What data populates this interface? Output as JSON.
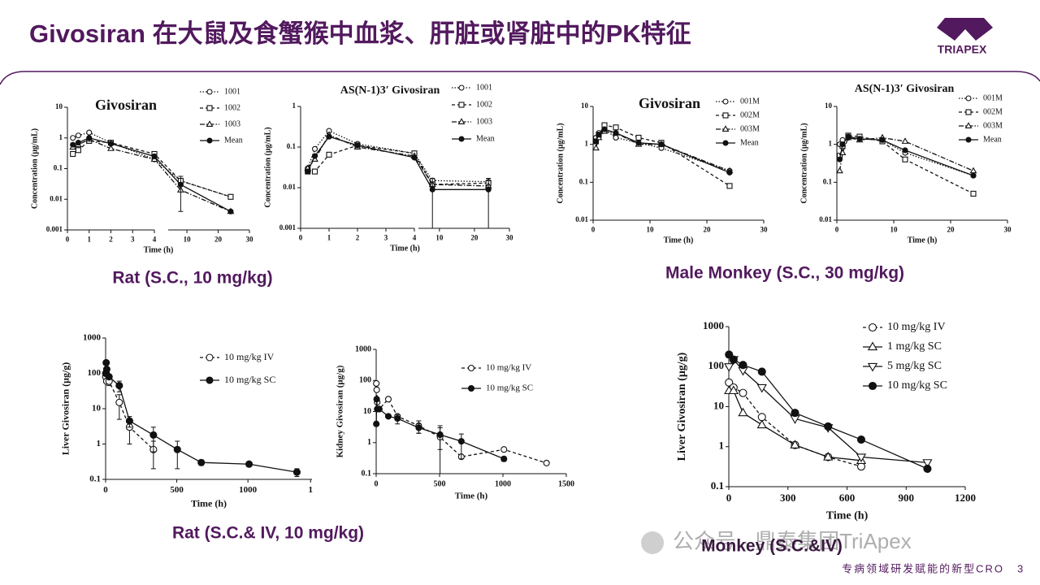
{
  "header": {
    "title": "Givosiran 在大鼠及食蟹猴中血浆、肝脏或肾脏中的PK特征",
    "logo": "TRIAPEX"
  },
  "captions": [
    "Rat (S.C., 10 mg/kg)",
    "Male Monkey (S.C., 30 mg/kg)",
    "Rat (S.C.& IV, 10 mg/kg)",
    "Monkey (S.C.&IV)"
  ],
  "footer": {
    "slogan": "专病领域研发赋能的新型CRO",
    "page": "3",
    "watermark": "公众号 · 鼎泰集团TriApex"
  },
  "chart_data": [
    {
      "type": "line",
      "title": "Givosiran",
      "xlabel": "Time (h)",
      "ylabel": "Concentration (μg/mL)",
      "log_y": true,
      "color": "#111111",
      "ylim": [
        0.001,
        10
      ],
      "yticks": [
        0.001,
        0.01,
        0.1,
        1,
        10
      ],
      "xaxis_segments": [
        {
          "xlim": [
            0,
            4
          ],
          "xticks": [
            0,
            1,
            2,
            3,
            4
          ]
        },
        {
          "xlim": [
            4,
            30
          ],
          "xticks": [
            10,
            20,
            30
          ]
        }
      ],
      "series": [
        {
          "name": "1001",
          "marker": "circle-open",
          "dash": "dotted",
          "x": [
            0.25,
            0.5,
            1,
            2,
            4,
            8,
            24
          ],
          "values": [
            1.0,
            1.2,
            1.5,
            0.7,
            0.2,
            0.04,
            0.012
          ]
        },
        {
          "name": "1002",
          "marker": "square-open",
          "dash": "dashed",
          "x": [
            0.25,
            0.5,
            1,
            2,
            4,
            8,
            24
          ],
          "values": [
            0.3,
            0.4,
            0.8,
            0.7,
            0.3,
            0.04,
            0.012
          ]
        },
        {
          "name": "1003",
          "marker": "triangle-open",
          "dash": "dashdot",
          "x": [
            0.25,
            0.5,
            1,
            2,
            4,
            8,
            24
          ],
          "values": [
            0.5,
            0.6,
            0.9,
            0.45,
            0.2,
            0.02,
            0.004
          ]
        },
        {
          "name": "Mean",
          "marker": "circle-filled",
          "dash": "solid",
          "x": [
            0.25,
            0.5,
            1,
            2,
            4,
            8,
            24
          ],
          "values": [
            0.6,
            0.7,
            1.0,
            0.65,
            0.25,
            0.03,
            0.004
          ],
          "errors": [
            null,
            null,
            null,
            null,
            null,
            0.026,
            null
          ]
        }
      ]
    },
    {
      "type": "line",
      "title": "AS(N-1)3′ Givosiran",
      "xlabel": "Time (h)",
      "ylabel": "Concentration (μg/mL)",
      "log_y": true,
      "color": "#111111",
      "ylim": [
        0.001,
        1
      ],
      "yticks": [
        0.001,
        0.01,
        0.1,
        1
      ],
      "xaxis_segments": [
        {
          "xlim": [
            0,
            4
          ],
          "xticks": [
            0,
            1,
            2,
            3,
            4
          ]
        },
        {
          "xlim": [
            4,
            30
          ],
          "xticks": [
            10,
            20,
            30
          ]
        }
      ],
      "series": [
        {
          "name": "1001",
          "marker": "circle-open",
          "dash": "dotted",
          "x": [
            0.25,
            0.5,
            1,
            2,
            4,
            8,
            24
          ],
          "values": [
            0.03,
            0.09,
            0.25,
            0.12,
            0.07,
            0.015,
            0.014
          ]
        },
        {
          "name": "1002",
          "marker": "square-open",
          "dash": "dashed",
          "x": [
            0.25,
            0.5,
            1,
            2,
            4,
            8,
            24
          ],
          "values": [
            0.025,
            0.025,
            0.065,
            0.11,
            0.07,
            0.012,
            0.013
          ]
        },
        {
          "name": "1003",
          "marker": "triangle-open",
          "dash": "dashdot",
          "x": [
            0.25,
            0.5,
            1,
            2,
            4,
            8,
            24
          ],
          "values": [
            0.03,
            0.05,
            0.2,
            0.1,
            0.06,
            0.012,
            0.011
          ]
        },
        {
          "name": "Mean",
          "marker": "circle-filled",
          "dash": "solid",
          "x": [
            0.25,
            0.5,
            1,
            2,
            4,
            8,
            24
          ],
          "values": [
            0.025,
            0.06,
            0.18,
            0.11,
            0.055,
            0.009,
            0.009
          ],
          "errors": [
            null,
            null,
            null,
            null,
            null,
            0.008,
            0.008
          ]
        }
      ]
    },
    {
      "type": "line",
      "title": "Givosiran",
      "xlabel": "Time (h)",
      "ylabel": "Concentration (μg/mL)",
      "log_y": true,
      "color": "#111111",
      "ylim": [
        0.01,
        10
      ],
      "yticks": [
        0.01,
        0.1,
        1,
        10
      ],
      "xlim": [
        0,
        30
      ],
      "xticks": [
        0,
        10,
        20,
        30
      ],
      "series": [
        {
          "name": "001M",
          "marker": "circle-open",
          "dash": "dotted",
          "x": [
            0.5,
            1,
            2,
            4,
            8,
            12,
            24
          ],
          "values": [
            1.5,
            2,
            2.5,
            1.5,
            1.1,
            0.8,
            0.2
          ]
        },
        {
          "name": "002M",
          "marker": "square-open",
          "dash": "dashed",
          "x": [
            0.5,
            1,
            2,
            4,
            8,
            12,
            24
          ],
          "values": [
            1.2,
            1.8,
            3.2,
            2.8,
            1.5,
            1.1,
            0.08
          ]
        },
        {
          "name": "003M",
          "marker": "triangle-open",
          "dash": "dashdot",
          "x": [
            0.5,
            1,
            2,
            4,
            8,
            12,
            24
          ],
          "values": [
            0.8,
            1.5,
            2.2,
            2,
            1.0,
            1.0,
            0.2
          ]
        },
        {
          "name": "Mean",
          "marker": "circle-filled",
          "dash": "solid",
          "x": [
            0.5,
            1,
            2,
            4,
            8,
            12,
            24
          ],
          "values": [
            1.2,
            1.8,
            2.5,
            2,
            1.1,
            1.0,
            0.18
          ]
        }
      ]
    },
    {
      "type": "line",
      "title": "AS(N-1)3′ Givosiran",
      "xlabel": "Time (h)",
      "ylabel": "Concentration (μg/mL)",
      "log_y": true,
      "color": "#111111",
      "ylim": [
        0.01,
        10
      ],
      "yticks": [
        0.01,
        0.1,
        1,
        10
      ],
      "xlim": [
        0,
        30
      ],
      "xticks": [
        0,
        10,
        20,
        30
      ],
      "series": [
        {
          "name": "001M",
          "marker": "circle-open",
          "dash": "dotted",
          "x": [
            0.5,
            1,
            2,
            4,
            8,
            12,
            24
          ],
          "values": [
            1.0,
            1.3,
            1.5,
            1.4,
            1.3,
            0.6,
            0.15
          ]
        },
        {
          "name": "002M",
          "marker": "square-open",
          "dash": "dashed",
          "x": [
            0.5,
            1,
            2,
            4,
            8,
            12,
            24
          ],
          "values": [
            0.5,
            0.9,
            1.7,
            1.6,
            1.2,
            0.4,
            0.05
          ]
        },
        {
          "name": "003M",
          "marker": "triangle-open",
          "dash": "dashdot",
          "x": [
            0.5,
            1,
            2,
            4,
            8,
            12,
            24
          ],
          "values": [
            0.2,
            0.6,
            1.5,
            1.3,
            1.5,
            1.2,
            0.2
          ]
        },
        {
          "name": "Mean",
          "marker": "circle-filled",
          "dash": "solid",
          "x": [
            0.5,
            1,
            2,
            4,
            8,
            12,
            24
          ],
          "values": [
            0.4,
            1.0,
            1.6,
            1.4,
            1.3,
            0.7,
            0.15
          ]
        }
      ]
    },
    {
      "type": "line",
      "xlabel": "Time (h)",
      "ylabel": "Liver Givosiran (μg/g)",
      "log_y": true,
      "color": "#111111",
      "ylim": [
        0.1,
        1000
      ],
      "yticks": [
        0.1,
        1,
        10,
        100,
        1000
      ],
      "xlim": [
        0,
        1450
      ],
      "xticks": [
        0,
        500,
        1000,
        {
          "value": 1440,
          "label": "1"
        }
      ],
      "series": [
        {
          "name": "10 mg/kg IV",
          "marker": "circle-open",
          "dash": "dashed",
          "x": [
            1,
            4,
            8,
            24,
            96,
            168,
            336
          ],
          "values": [
            80,
            100,
            60,
            60,
            15,
            3,
            0.7
          ],
          "errors": [
            null,
            null,
            null,
            15,
            10,
            2,
            0.5
          ]
        },
        {
          "name": "10 mg/kg SC",
          "marker": "circle-filled",
          "dash": "solid",
          "x": [
            1,
            4,
            8,
            24,
            96,
            168,
            336,
            504,
            672,
            1008,
            1344
          ],
          "values": [
            100,
            200,
            130,
            80,
            45,
            4.5,
            1.8,
            0.7,
            0.3,
            0.27,
            0.16
          ],
          "errors": [
            null,
            null,
            null,
            null,
            15,
            1.5,
            1.2,
            0.5,
            0.05,
            null,
            0.04
          ]
        }
      ]
    },
    {
      "type": "line",
      "xlabel": "Time (h)",
      "ylabel": "Kidney Givosiran (μg/g)",
      "log_y": true,
      "color": "#111111",
      "ylim": [
        0.1,
        1000
      ],
      "yticks": [
        0.1,
        1,
        10,
        100,
        1000
      ],
      "xlim": [
        0,
        1500
      ],
      "xticks": [
        0,
        500,
        1000,
        1500
      ],
      "series": [
        {
          "name": "10 mg/kg IV",
          "marker": "circle-open",
          "dash": "dashed",
          "x": [
            1,
            4,
            8,
            24,
            96,
            168,
            336,
            504,
            672,
            1008,
            1344
          ],
          "values": [
            80,
            50,
            20,
            12,
            25,
            7,
            3.5,
            1.5,
            0.35,
            0.6,
            0.22
          ],
          "errors": [
            null,
            null,
            null,
            null,
            null,
            null,
            1.5,
            2,
            null,
            null,
            null
          ]
        },
        {
          "name": "10 mg/kg SC",
          "marker": "circle-filled",
          "dash": "solid",
          "x": [
            1,
            4,
            8,
            24,
            96,
            168,
            336,
            504,
            672,
            1008
          ],
          "values": [
            4,
            25,
            12,
            12,
            7,
            6,
            3,
            1.8,
            1.1,
            0.3
          ],
          "errors": [
            null,
            null,
            null,
            null,
            null,
            2,
            1,
            1.2,
            0.8,
            0.05
          ]
        }
      ]
    },
    {
      "type": "line",
      "xlabel": "Time (h)",
      "ylabel": "Liver Givosiran (μg/g)",
      "log_y": true,
      "color": "#111111",
      "ylim": [
        0.1,
        1000
      ],
      "yticks": [
        0.1,
        1,
        10,
        100,
        1000
      ],
      "xlim": [
        0,
        1200
      ],
      "xticks": [
        0,
        300,
        600,
        900,
        1200
      ],
      "series": [
        {
          "name": "10 mg/kg IV",
          "marker": "circle-open",
          "dash": "dashed",
          "x": [
            1,
            24,
            72,
            168,
            336,
            504,
            672
          ],
          "values": [
            40,
            30,
            22,
            5.5,
            1.1,
            0.55,
            0.32
          ]
        },
        {
          "name": "1 mg/kg SC",
          "marker": "triangle-open",
          "dash": "solid",
          "x": [
            1,
            24,
            72,
            168,
            336,
            504,
            672
          ],
          "values": [
            25,
            25,
            7,
            3.5,
            1.1,
            0.55,
            0.45
          ]
        },
        {
          "name": "5 mg/kg SC",
          "marker": "triangle-down-open",
          "dash": "solid",
          "x": [
            1,
            24,
            72,
            168,
            336,
            504,
            672,
            1008
          ],
          "values": [
            100,
            150,
            80,
            30,
            5,
            3,
            0.55,
            0.4
          ]
        },
        {
          "name": "10 mg/kg SC",
          "marker": "circle-filled",
          "dash": "solid",
          "x": [
            1,
            24,
            72,
            168,
            336,
            504,
            672,
            1008
          ],
          "values": [
            200,
            150,
            110,
            75,
            7,
            3.2,
            1.5,
            0.28
          ]
        }
      ]
    }
  ]
}
